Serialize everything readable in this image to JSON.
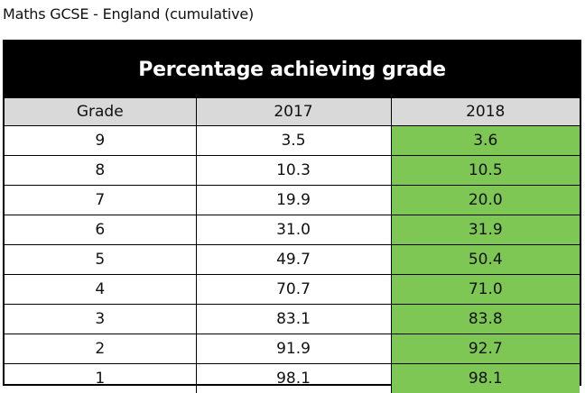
{
  "caption": "Maths GCSE - England (cumulative)",
  "colors": {
    "title_bg": "#000000",
    "header_bg": "#d9d9d9",
    "highlight_2018": "#7ec755"
  },
  "chart_data": {
    "type": "table",
    "title": "Percentage achieving grade",
    "columns": [
      "Grade",
      "2017",
      "2018"
    ],
    "rows": [
      {
        "grade": "9",
        "y2017": "3.5",
        "y2018": "3.6"
      },
      {
        "grade": "8",
        "y2017": "10.3",
        "y2018": "10.5"
      },
      {
        "grade": "7",
        "y2017": "19.9",
        "y2018": "20.0"
      },
      {
        "grade": "6",
        "y2017": "31.0",
        "y2018": "31.9"
      },
      {
        "grade": "5",
        "y2017": "49.7",
        "y2018": "50.4"
      },
      {
        "grade": "4",
        "y2017": "70.7",
        "y2018": "71.0"
      },
      {
        "grade": "3",
        "y2017": "83.1",
        "y2018": "83.8"
      },
      {
        "grade": "2",
        "y2017": "91.9",
        "y2018": "92.7"
      },
      {
        "grade": "1",
        "y2017": "98.1",
        "y2018": "98.1"
      }
    ]
  }
}
